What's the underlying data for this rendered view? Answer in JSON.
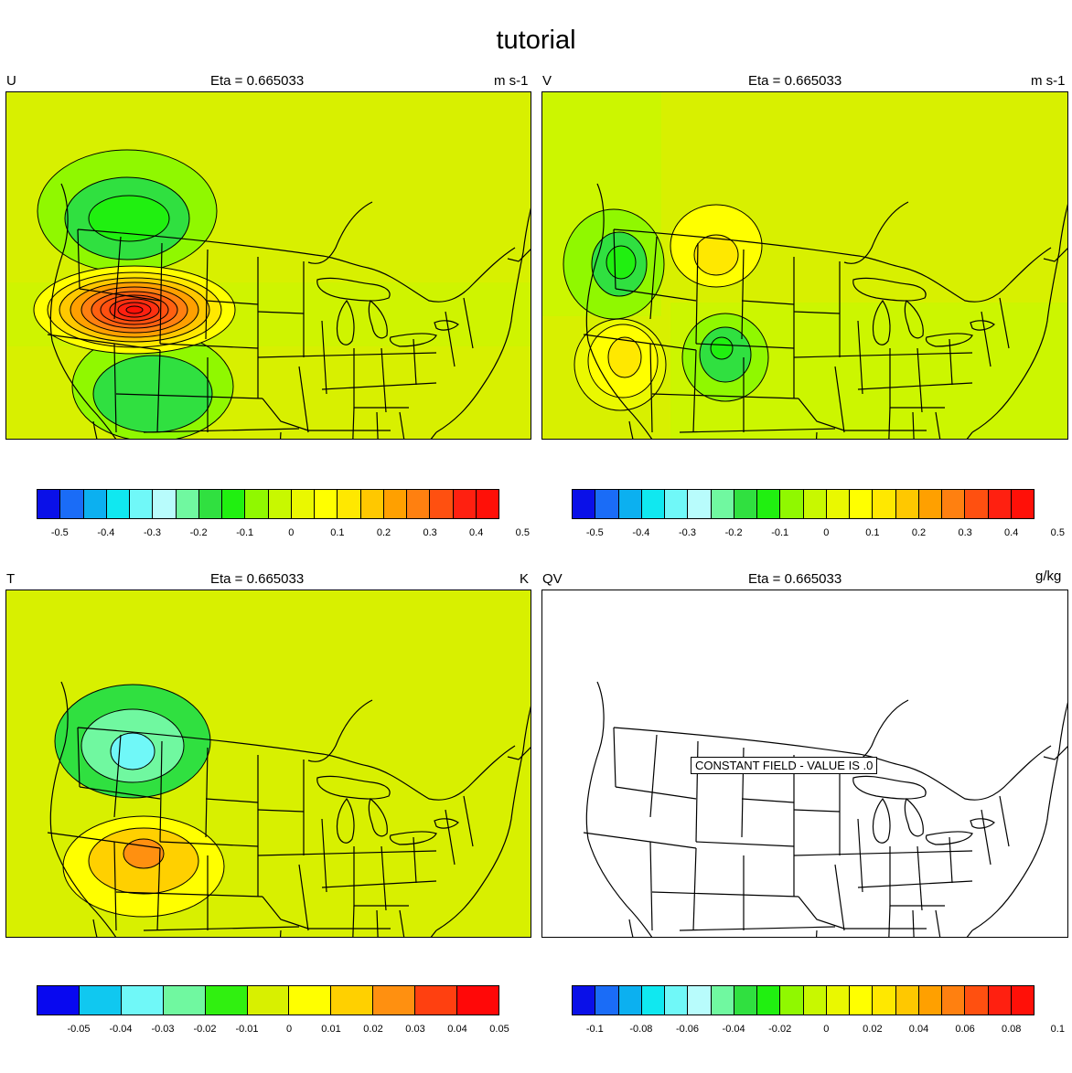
{
  "title": "tutorial",
  "panels": [
    {
      "var": "U",
      "level": "Eta = 0.665033",
      "units": "m s-1",
      "background": "#d8f000",
      "colorbar": {
        "colors": [
          "#0a10e8",
          "#1a6cf7",
          "#0cb0f0",
          "#10e8f0",
          "#70f8f8",
          "#b8fcfc",
          "#70f8a0",
          "#30e040",
          "#20f010",
          "#90f800",
          "#c8f800",
          "#eaf800",
          "#ffff00",
          "#ffe800",
          "#ffc800",
          "#ffa000",
          "#ff8010",
          "#ff5010",
          "#ff2010",
          "#ff1008"
        ],
        "ticks": [
          "-0.5",
          "-0.4",
          "-0.3",
          "-0.2",
          "-0.1",
          "0",
          "0.1",
          "0.2",
          "0.3",
          "0.4",
          "0.5"
        ]
      }
    },
    {
      "var": "V",
      "level": "Eta = 0.665033",
      "units": "m s-1",
      "background": "#d8f000",
      "colorbar": {
        "colors": [
          "#0a10e8",
          "#1a6cf7",
          "#0cb0f0",
          "#10e8f0",
          "#70f8f8",
          "#b8fcfc",
          "#70f8a0",
          "#30e040",
          "#20f010",
          "#90f800",
          "#c8f800",
          "#eaf800",
          "#ffff00",
          "#ffe800",
          "#ffc800",
          "#ffa000",
          "#ff8010",
          "#ff5010",
          "#ff2010",
          "#ff1008"
        ],
        "ticks": [
          "-0.5",
          "-0.4",
          "-0.3",
          "-0.2",
          "-0.1",
          "0",
          "0.1",
          "0.2",
          "0.3",
          "0.4",
          "0.5"
        ]
      }
    },
    {
      "var": "T",
      "level": "Eta = 0.665033",
      "units": "K",
      "background": "#d8f000",
      "colorbar": {
        "colors": [
          "#0808f0",
          "#10c8f0",
          "#70f8f8",
          "#70f8a0",
          "#30f010",
          "#d8f000",
          "#ffff00",
          "#ffd000",
          "#ff9010",
          "#ff4010",
          "#ff0808"
        ],
        "ticks": [
          "-0.05",
          "-0.04",
          "-0.03",
          "-0.02",
          "-0.01",
          "0",
          "0.01",
          "0.02",
          "0.03",
          "0.04",
          "0.05"
        ]
      }
    },
    {
      "var": "QV",
      "level": "Eta = 0.665033",
      "units": "g/kg",
      "background": "#ffffff",
      "message": "CONSTANT FIELD - VALUE IS .0",
      "colorbar": {
        "colors": [
          "#0a10e8",
          "#1a6cf7",
          "#0cb0f0",
          "#10e8f0",
          "#70f8f8",
          "#b8fcfc",
          "#70f8a0",
          "#30e040",
          "#20f010",
          "#90f800",
          "#c8f800",
          "#eaf800",
          "#ffff00",
          "#ffe800",
          "#ffc800",
          "#ffa000",
          "#ff8010",
          "#ff5010",
          "#ff2010",
          "#ff1008"
        ],
        "ticks": [
          "-0.1",
          "-0.08",
          "-0.06",
          "-0.04",
          "-0.02",
          "0",
          "0.02",
          "0.04",
          "0.06",
          "0.08",
          "0.1"
        ]
      }
    }
  ]
}
